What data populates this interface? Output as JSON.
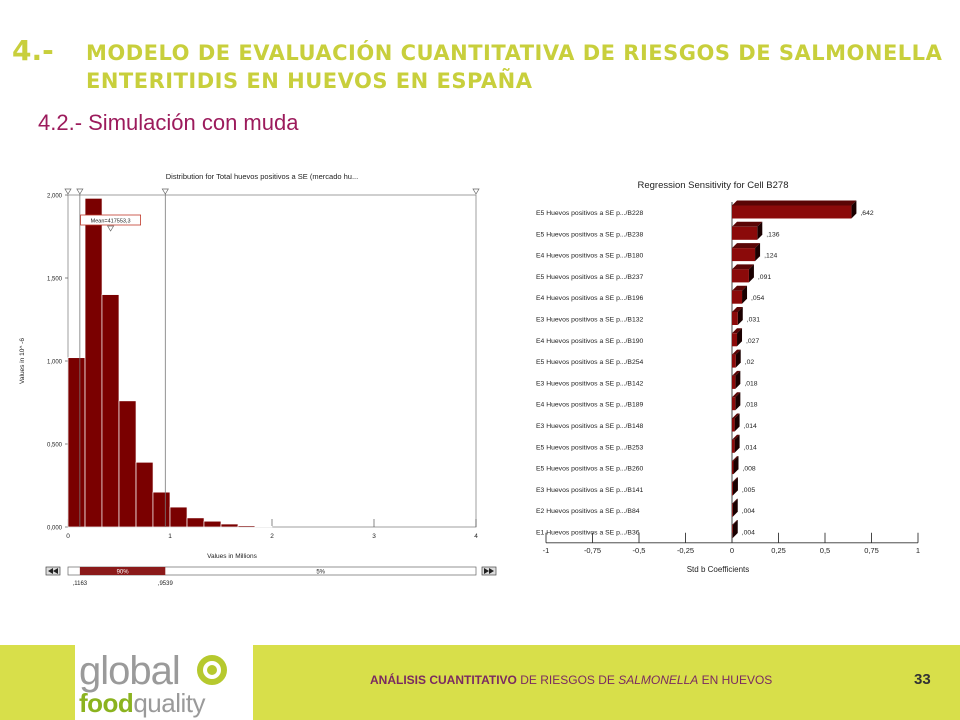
{
  "header": {
    "number": "4.-",
    "title": "MODELO DE EVALUACIÓN CUANTITATIVA DE RIESGOS DE SALMONELLA ENTERITIDIS EN HUEVOS EN ESPAÑA",
    "subtitle": "4.2.- Simulación con muda"
  },
  "chart_data": [
    {
      "type": "bar",
      "subtype": "histogram",
      "title": "Distribution for Total huevos positivos a SE (mercado hu...",
      "xlabel": "Values in Millions",
      "ylabel": "Values in 10^ -6",
      "xlim": [
        0,
        4
      ],
      "ylim": [
        0,
        2
      ],
      "x_ticks": [
        "0",
        "1",
        "2",
        "3",
        "4"
      ],
      "y_ticks": [
        "0,000",
        "0,500",
        "1,000",
        "1,500",
        "2,000"
      ],
      "bin_width": 0.167,
      "bin_starts": [
        0.0,
        0.167,
        0.333,
        0.5,
        0.667,
        0.833,
        1.0,
        1.167,
        1.333,
        1.5,
        1.667,
        1.833
      ],
      "values": [
        1.02,
        1.98,
        1.4,
        0.76,
        0.39,
        0.21,
        0.12,
        0.055,
        0.035,
        0.018,
        0.008,
        0.004
      ],
      "bar_color": "#7a0000",
      "mean_label": "Mean=417553,3",
      "mean_value": 0.4176,
      "markers": [
        0.1163,
        0.9539
      ],
      "range_bar": {
        "left_label": "90%",
        "right_label": "5%",
        "low_value": ",1163",
        "high_value": ",9539"
      }
    },
    {
      "type": "bar",
      "subtype": "tornado",
      "title": "Regression Sensitivity for Cell B278",
      "xlabel": "Std b Coefficients",
      "xlim": [
        -1,
        1
      ],
      "x_ticks": [
        "-1",
        "-0,75",
        "-0,5",
        "-0,25",
        "0",
        "0,25",
        "0,5",
        "0,75",
        "1"
      ],
      "bar_color": "#8b0a0a",
      "categories": [
        "E5 Huevos positivos a SE p.../B228",
        "E5 Huevos positivos a SE p.../B238",
        "E4 Huevos positivos a SE p.../B180",
        "E5 Huevos positivos a SE p.../B237",
        "E4 Huevos positivos a SE p.../B196",
        "E3 Huevos positivos a SE p.../B132",
        "E4 Huevos positivos a SE p.../B190",
        "E5 Huevos positivos a SE p.../B254",
        "E3 Huevos positivos a SE p.../B142",
        "E4 Huevos positivos a SE p.../B189",
        "E3 Huevos positivos a SE p.../B148",
        "E5 Huevos positivos a SE p.../B253",
        "E5 Huevos positivos a SE p.../B260",
        "E3 Huevos positivos a SE p.../B141",
        "E2 Huevos positivos a SE p.../B84",
        "E1 Huevos positivos a SE p.../B36"
      ],
      "values": [
        0.642,
        0.136,
        0.124,
        0.091,
        0.054,
        0.031,
        0.027,
        0.02,
        0.018,
        0.018,
        0.014,
        0.014,
        0.008,
        0.005,
        0.004,
        0.004
      ],
      "value_labels": [
        ",642",
        ",136",
        ",124",
        ",091",
        ",054",
        ",031",
        ",027",
        ",02",
        ",018",
        ",018",
        ",014",
        ",014",
        ",008",
        ",005",
        ",004",
        ",004"
      ]
    }
  ],
  "footer": {
    "logo_top": "global",
    "logo_bottom_1": "food",
    "logo_bottom_2": "quality",
    "text_bold": "ANÁLISIS CUANTITATIVO",
    "text_regular_1": " DE RIESGOS DE ",
    "text_italic": "SALMONELLA",
    "text_regular_2": " EN HUEVOS",
    "page": "33"
  },
  "colors": {
    "title": "#c8cf3c",
    "subtitle": "#9c1b5c",
    "footer_bg": "#d8df4a",
    "bars": "#7a0000"
  }
}
